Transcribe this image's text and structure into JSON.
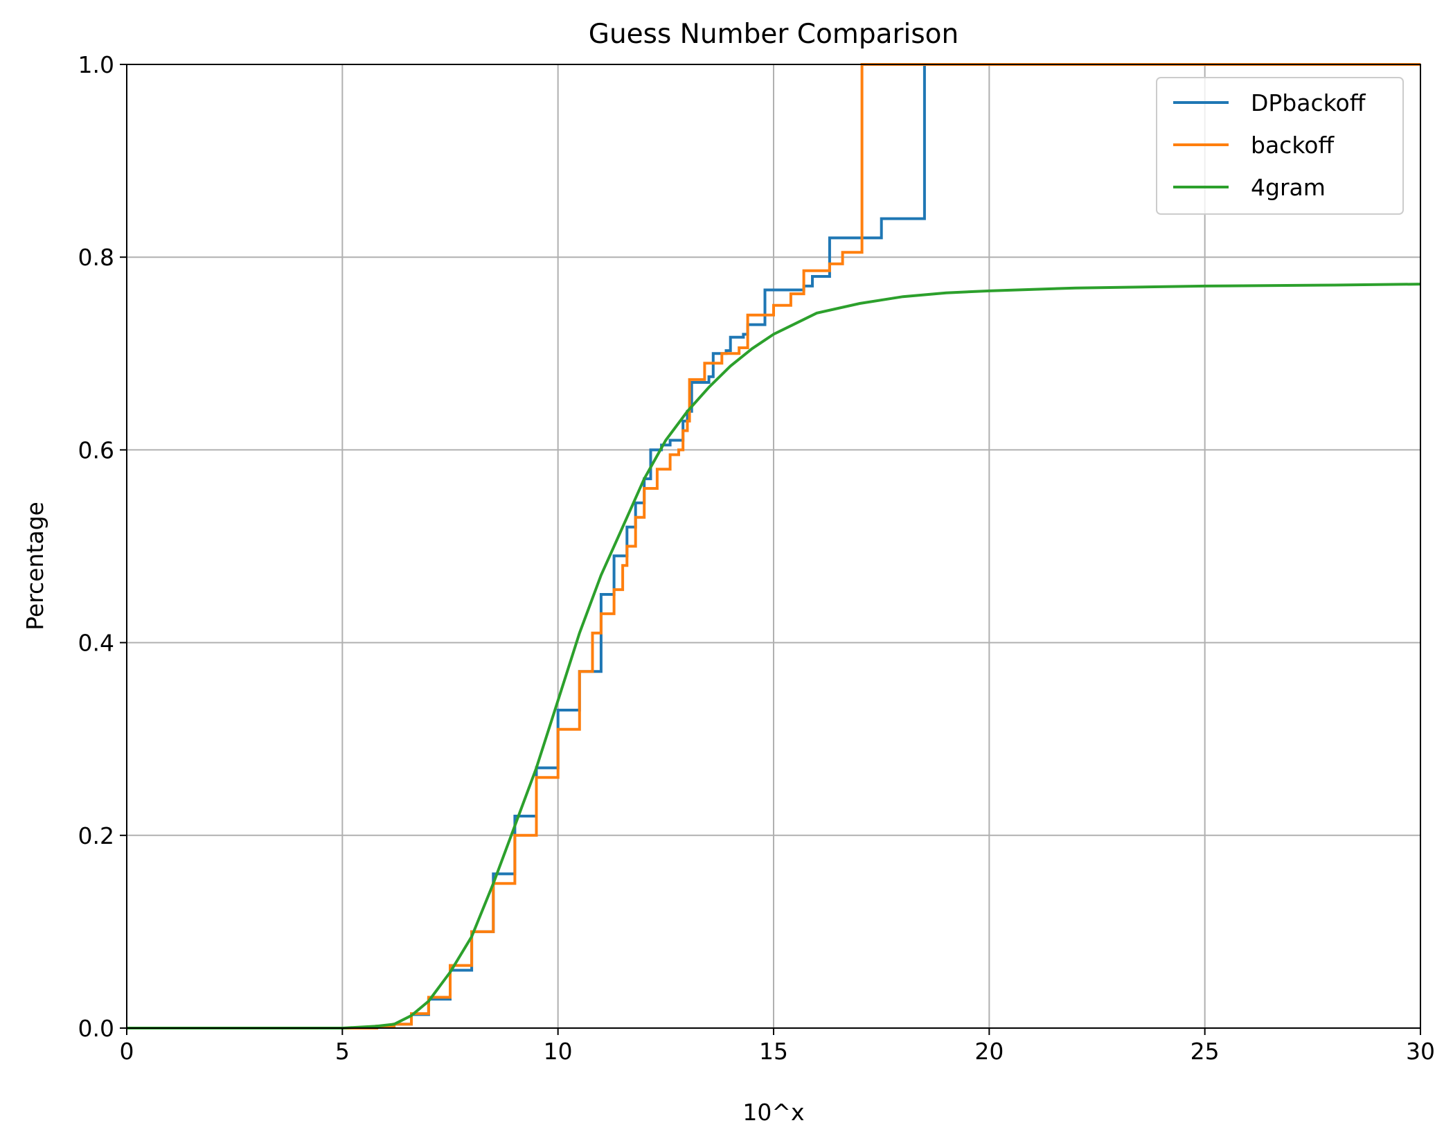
{
  "chart_data": {
    "type": "line",
    "title": "Guess Number Comparison",
    "xlabel": "10^x",
    "ylabel": "Percentage",
    "xlim": [
      0,
      30
    ],
    "ylim": [
      0,
      1.0
    ],
    "xticks": [
      0,
      5,
      10,
      15,
      20,
      25,
      30
    ],
    "yticks": [
      0.0,
      0.2,
      0.4,
      0.6,
      0.8,
      1.0
    ],
    "xtick_labels": [
      "0",
      "5",
      "10",
      "15",
      "20",
      "25",
      "30"
    ],
    "ytick_labels": [
      "0.0",
      "0.2",
      "0.4",
      "0.6",
      "0.8",
      "1.0"
    ],
    "grid": true,
    "legend_position": "top-right",
    "series": [
      {
        "name": "DPbackoff",
        "color": "#1f77b4",
        "step": true,
        "points": [
          [
            0,
            0
          ],
          [
            5,
            0
          ],
          [
            5.8,
            0.002
          ],
          [
            6.2,
            0.004
          ],
          [
            6.6,
            0.014
          ],
          [
            7.0,
            0.03
          ],
          [
            7.5,
            0.06
          ],
          [
            8.0,
            0.1
          ],
          [
            8.5,
            0.16
          ],
          [
            9.0,
            0.22
          ],
          [
            9.5,
            0.27
          ],
          [
            10.0,
            0.33
          ],
          [
            10.5,
            0.37
          ],
          [
            11.0,
            0.45
          ],
          [
            11.3,
            0.49
          ],
          [
            11.6,
            0.52
          ],
          [
            11.8,
            0.545
          ],
          [
            12.0,
            0.57
          ],
          [
            12.15,
            0.6
          ],
          [
            12.4,
            0.605
          ],
          [
            12.6,
            0.61
          ],
          [
            12.9,
            0.63
          ],
          [
            13.0,
            0.64
          ],
          [
            13.1,
            0.67
          ],
          [
            13.5,
            0.676
          ],
          [
            13.6,
            0.7
          ],
          [
            13.9,
            0.703
          ],
          [
            14.0,
            0.717
          ],
          [
            14.3,
            0.72
          ],
          [
            14.4,
            0.73
          ],
          [
            14.8,
            0.766
          ],
          [
            15.7,
            0.77
          ],
          [
            15.9,
            0.78
          ],
          [
            16.3,
            0.82
          ],
          [
            17.5,
            0.84
          ],
          [
            18.5,
            0.84
          ],
          [
            18.5,
            1.0
          ],
          [
            30,
            1.0
          ]
        ]
      },
      {
        "name": "backoff",
        "color": "#ff7f0e",
        "step": true,
        "points": [
          [
            0,
            0
          ],
          [
            5,
            0
          ],
          [
            5.8,
            0.002
          ],
          [
            6.2,
            0.004
          ],
          [
            6.6,
            0.015
          ],
          [
            7.0,
            0.032
          ],
          [
            7.5,
            0.065
          ],
          [
            8.0,
            0.1
          ],
          [
            8.5,
            0.15
          ],
          [
            9.0,
            0.2
          ],
          [
            9.5,
            0.26
          ],
          [
            10.0,
            0.31
          ],
          [
            10.5,
            0.37
          ],
          [
            10.8,
            0.41
          ],
          [
            11.0,
            0.43
          ],
          [
            11.3,
            0.455
          ],
          [
            11.5,
            0.48
          ],
          [
            11.6,
            0.5
          ],
          [
            11.8,
            0.53
          ],
          [
            12.0,
            0.56
          ],
          [
            12.3,
            0.58
          ],
          [
            12.6,
            0.595
          ],
          [
            12.8,
            0.6
          ],
          [
            12.9,
            0.62
          ],
          [
            13.0,
            0.63
          ],
          [
            13.05,
            0.673
          ],
          [
            13.4,
            0.69
          ],
          [
            13.8,
            0.7
          ],
          [
            14.2,
            0.706
          ],
          [
            14.4,
            0.74
          ],
          [
            14.8,
            0.74
          ],
          [
            15.0,
            0.75
          ],
          [
            15.4,
            0.762
          ],
          [
            15.7,
            0.786
          ],
          [
            16.3,
            0.793
          ],
          [
            16.6,
            0.805
          ],
          [
            17.05,
            0.805
          ],
          [
            17.05,
            1.0
          ],
          [
            30,
            1.0
          ]
        ]
      },
      {
        "name": "4gram",
        "color": "#2ca02c",
        "step": false,
        "points": [
          [
            0,
            0
          ],
          [
            5,
            0
          ],
          [
            5.8,
            0.002
          ],
          [
            6.2,
            0.004
          ],
          [
            6.6,
            0.013
          ],
          [
            7.0,
            0.028
          ],
          [
            7.5,
            0.058
          ],
          [
            8.0,
            0.095
          ],
          [
            8.5,
            0.15
          ],
          [
            9.0,
            0.21
          ],
          [
            9.5,
            0.27
          ],
          [
            10.0,
            0.34
          ],
          [
            10.5,
            0.41
          ],
          [
            11.0,
            0.47
          ],
          [
            11.5,
            0.52
          ],
          [
            12.0,
            0.57
          ],
          [
            12.5,
            0.61
          ],
          [
            13.0,
            0.64
          ],
          [
            13.5,
            0.665
          ],
          [
            14.0,
            0.687
          ],
          [
            14.5,
            0.705
          ],
          [
            15.0,
            0.72
          ],
          [
            16.0,
            0.742
          ],
          [
            17.0,
            0.752
          ],
          [
            18.0,
            0.759
          ],
          [
            19.0,
            0.763
          ],
          [
            20.0,
            0.765
          ],
          [
            22.0,
            0.768
          ],
          [
            25.0,
            0.77
          ],
          [
            28.0,
            0.771
          ],
          [
            30.0,
            0.772
          ]
        ]
      }
    ]
  }
}
